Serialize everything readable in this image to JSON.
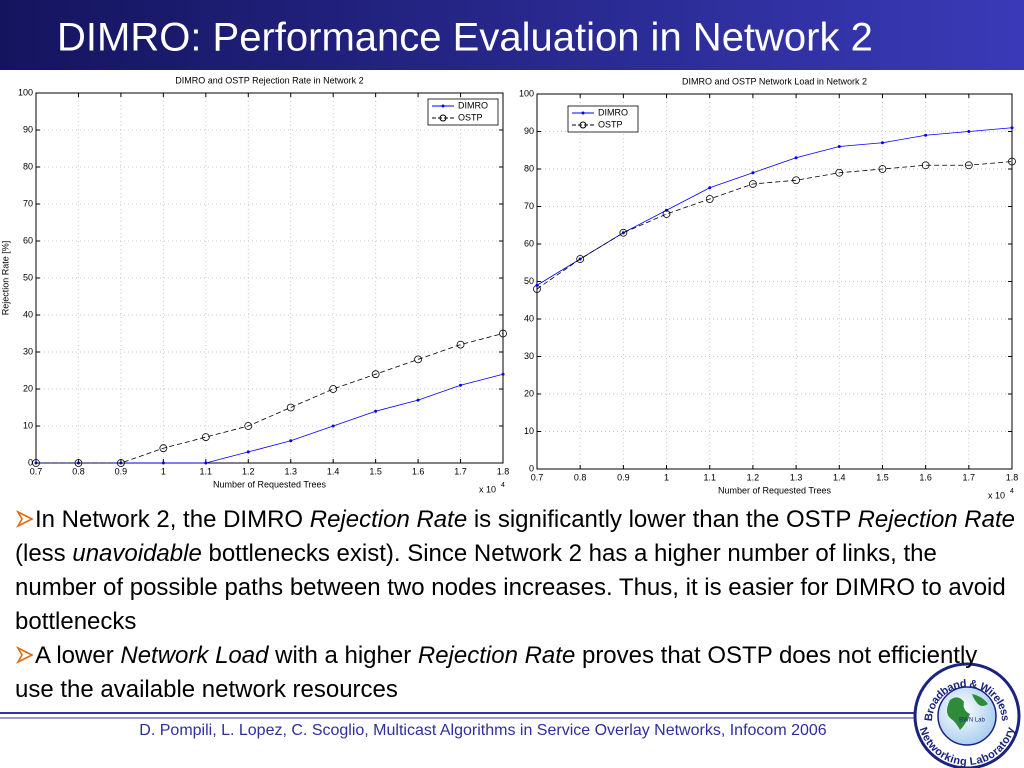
{
  "title": "DIMRO: Performance Evaluation in Network 2",
  "chart_data": [
    {
      "type": "line",
      "title": "DIMRO and OSTP Rejection Rate in Network 2",
      "x_label": "Number of Requested Trees",
      "y_label": "Rejection Rate [%]",
      "x_multiplier": {
        "base": "x 10",
        "exponent": "4"
      },
      "x": [
        0.7,
        0.8,
        0.9,
        1,
        1.1,
        1.2,
        1.3,
        1.4,
        1.5,
        1.6,
        1.7,
        1.8
      ],
      "series": [
        {
          "name": "DIMRO",
          "color": "#0000ff",
          "style": "solid",
          "marker": "dot",
          "values": [
            0,
            0,
            0,
            0,
            0,
            3,
            6,
            10,
            14,
            17,
            21,
            24
          ]
        },
        {
          "name": "OSTP",
          "color": "#000000",
          "style": "dashed",
          "marker": "circle",
          "values": [
            0,
            0,
            0,
            4,
            7,
            10,
            15,
            20,
            24,
            28,
            32,
            35
          ]
        }
      ],
      "xlim": [
        0.7,
        1.8
      ],
      "xticks": [
        0.7,
        0.8,
        0.9,
        1,
        1.1,
        1.2,
        1.3,
        1.4,
        1.5,
        1.6,
        1.7,
        1.8
      ],
      "ylim": [
        0,
        100
      ],
      "yticks": [
        0,
        10,
        20,
        30,
        40,
        50,
        60,
        70,
        80,
        90,
        100
      ],
      "grid": true,
      "legend": "upper right"
    },
    {
      "type": "line",
      "title": "DIMRO and OSTP Network Load in Network 2",
      "x_label": "Number of Requested Trees",
      "x_multiplier": {
        "base": "x 10",
        "exponent": "4"
      },
      "x": [
        0.7,
        0.8,
        0.9,
        1,
        1.1,
        1.2,
        1.3,
        1.4,
        1.5,
        1.6,
        1.7,
        1.8
      ],
      "series": [
        {
          "name": "DIMRO",
          "color": "#0000ff",
          "style": "solid",
          "marker": "dot",
          "values": [
            49,
            56,
            63,
            69,
            75,
            79,
            83,
            86,
            87,
            89,
            90,
            91
          ]
        },
        {
          "name": "OSTP",
          "color": "#000000",
          "style": "dashed",
          "marker": "circle",
          "values": [
            48,
            56,
            63,
            68,
            72,
            76,
            77,
            79,
            80,
            81,
            81,
            82
          ]
        }
      ],
      "xlim": [
        0.7,
        1.8
      ],
      "xticks": [
        0.7,
        0.8,
        0.9,
        1,
        1.1,
        1.2,
        1.3,
        1.4,
        1.5,
        1.6,
        1.7,
        1.8
      ],
      "ylim": [
        0,
        100
      ],
      "yticks": [
        0,
        10,
        20,
        30,
        40,
        50,
        60,
        70,
        80,
        90,
        100
      ],
      "grid": true,
      "legend": "upper left"
    }
  ],
  "bullets": [
    [
      {
        "text": "In Network 2, the DIMRO "
      },
      {
        "text": "Rejection Rate",
        "italic": true
      },
      {
        "text": " is significantly lower than the OSTP "
      },
      {
        "text": "Rejection Rate",
        "italic": true
      },
      {
        "text": " (less "
      },
      {
        "text": "unavoidable",
        "italic": true
      },
      {
        "text": " bottlenecks exist). Since Network 2 has a higher number of links, the number of possible paths between two nodes increases. Thus, it is easier for DIMRO to avoid bottlenecks"
      }
    ],
    [
      {
        "text": "A lower "
      },
      {
        "text": "Network Load",
        "italic": true
      },
      {
        "text": " with a higher "
      },
      {
        "text": "Rejection Rate",
        "italic": true
      },
      {
        "text": " proves that OSTP does not efficiently use the available network resources"
      }
    ]
  ],
  "footer": "D. Pompili, L. Lopez, C. Scoglio, Multicast Algorithms in Service Overlay Networks, Infocom 2006",
  "logo": {
    "top": "Broadband & Wireless",
    "bottom": "Networking Laboratory",
    "center": "BWN Lab"
  }
}
